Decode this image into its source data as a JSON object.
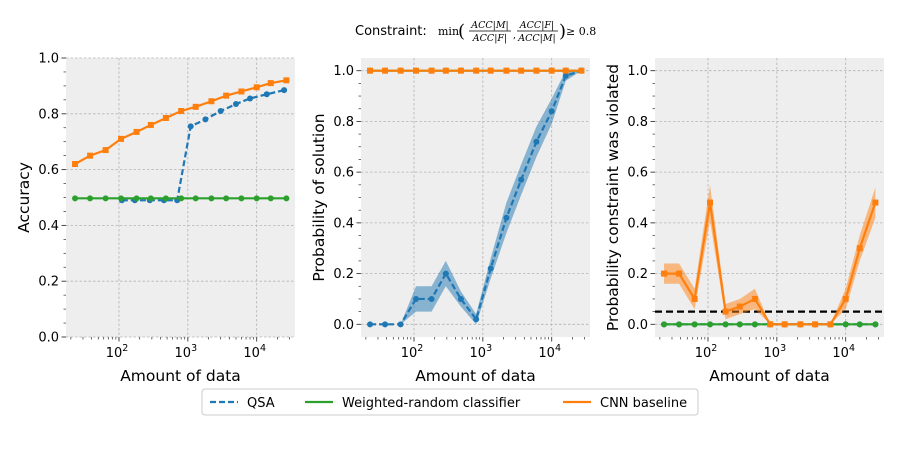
{
  "figure": {
    "title_prefix": "Constraint:",
    "title_min": "min",
    "title_frac1_num": "ACC|M|",
    "title_frac1_den": "ACC|F|",
    "title_frac2_num": "ACC|F|",
    "title_frac2_den": "ACC|M|",
    "title_comparison": "≥ 0.8",
    "background": "#ffffff",
    "axes_background": "#eeeeee",
    "grid_color": "#b3b3b3"
  },
  "legend": {
    "placement": "bottom-center",
    "entries": [
      {
        "label": "QSA",
        "color": "#1f77b4",
        "style": "dashed"
      },
      {
        "label": "Weighted-random classifier",
        "color": "#2ca02c",
        "style": "solid"
      },
      {
        "label": "CNN baseline",
        "color": "#ff7f0e",
        "style": "solid"
      }
    ]
  },
  "chart_data": [
    {
      "type": "line",
      "xlabel": "Amount of data",
      "ylabel": "Accuracy",
      "xscale": "log",
      "xlim": [
        17,
        36000
      ],
      "ylim": [
        0,
        1
      ],
      "yticks": [
        0.0,
        0.2,
        0.4,
        0.6,
        0.8,
        1.0
      ],
      "ytick_labels": [
        "0.0",
        "0.2",
        "0.4",
        "0.6",
        "0.8",
        "1.0"
      ],
      "xtick_labels": [
        {
          "base": "10",
          "exp": "2"
        },
        {
          "base": "10",
          "exp": "3"
        },
        {
          "base": "10",
          "exp": "4"
        }
      ],
      "xtick_values": [
        100,
        1000,
        10000
      ],
      "grid": true,
      "series": [
        {
          "name": "QSA",
          "color": "#1f77b4",
          "style": "dashed",
          "marker": "circle",
          "x": [
            110,
            170,
            280,
            450,
            700,
            1100,
            1800,
            3000,
            5000,
            8000,
            14000,
            25000
          ],
          "y": [
            0.49,
            0.49,
            0.49,
            0.49,
            0.49,
            0.755,
            0.78,
            0.81,
            0.835,
            0.855,
            0.87,
            0.885
          ]
        },
        {
          "name": "Weighted-random classifier",
          "color": "#2ca02c",
          "style": "solid",
          "marker": "circle",
          "x": [
            23,
            38,
            64,
            107,
            180,
            290,
            480,
            800,
            1300,
            2200,
            3600,
            6000,
            10000,
            16000,
            27000
          ],
          "y": [
            0.497,
            0.497,
            0.497,
            0.497,
            0.497,
            0.497,
            0.497,
            0.497,
            0.497,
            0.497,
            0.497,
            0.497,
            0.497,
            0.497,
            0.497
          ]
        },
        {
          "name": "CNN baseline",
          "color": "#ff7f0e",
          "style": "solid",
          "marker": "square",
          "x": [
            23,
            38,
            64,
            107,
            180,
            290,
            480,
            800,
            1300,
            2200,
            3600,
            6000,
            10000,
            16000,
            27000
          ],
          "y": [
            0.62,
            0.65,
            0.67,
            0.71,
            0.735,
            0.76,
            0.785,
            0.81,
            0.825,
            0.845,
            0.865,
            0.88,
            0.895,
            0.91,
            0.92
          ]
        }
      ]
    },
    {
      "type": "line",
      "xlabel": "Amount of data",
      "ylabel": "Probability of solution",
      "xscale": "log",
      "xlim": [
        17,
        36000
      ],
      "ylim": [
        -0.05,
        1.05
      ],
      "yticks": [
        0.0,
        0.2,
        0.4,
        0.6,
        0.8,
        1.0
      ],
      "ytick_labels": [
        "0.0",
        "0.2",
        "0.4",
        "0.6",
        "0.8",
        "1.0"
      ],
      "xtick_labels": [
        {
          "base": "10",
          "exp": "2"
        },
        {
          "base": "10",
          "exp": "3"
        },
        {
          "base": "10",
          "exp": "4"
        }
      ],
      "xtick_values": [
        100,
        1000,
        10000
      ],
      "grid": true,
      "series": [
        {
          "name": "QSA",
          "color": "#1f77b4",
          "style": "dashed",
          "marker": "circle",
          "x": [
            23,
            38,
            64,
            107,
            180,
            290,
            480,
            800,
            1300,
            2200,
            3600,
            6000,
            10000,
            16000,
            27000
          ],
          "y": [
            0.0,
            0.0,
            0.0,
            0.1,
            0.1,
            0.2,
            0.1,
            0.02,
            0.22,
            0.42,
            0.57,
            0.72,
            0.84,
            0.98,
            1.0
          ],
          "band": [
            0.0,
            0.0,
            0.0,
            0.05,
            0.05,
            0.05,
            0.03,
            0.02,
            0.04,
            0.06,
            0.06,
            0.06,
            0.05,
            0.02,
            0.0
          ]
        },
        {
          "name": "Weighted-random classifier",
          "color": "#2ca02c",
          "style": "solid",
          "marker": "circle",
          "x": [
            23,
            38,
            64,
            107,
            180,
            290,
            480,
            800,
            1300,
            2200,
            3600,
            6000,
            10000,
            16000,
            27000
          ],
          "y": [
            1.0,
            1.0,
            1.0,
            1.0,
            1.0,
            1.0,
            1.0,
            1.0,
            1.0,
            1.0,
            1.0,
            1.0,
            1.0,
            1.0,
            1.0
          ]
        },
        {
          "name": "CNN baseline",
          "color": "#ff7f0e",
          "style": "solid",
          "marker": "square",
          "x": [
            23,
            38,
            64,
            107,
            180,
            290,
            480,
            800,
            1300,
            2200,
            3600,
            6000,
            10000,
            16000,
            27000
          ],
          "y": [
            1.0,
            1.0,
            1.0,
            1.0,
            1.0,
            1.0,
            1.0,
            1.0,
            1.0,
            1.0,
            1.0,
            1.0,
            1.0,
            1.0,
            1.0
          ]
        }
      ]
    },
    {
      "type": "line",
      "xlabel": "Amount of data",
      "ylabel": "Probability constraint was violated",
      "xscale": "log",
      "xlim": [
        17,
        36000
      ],
      "ylim": [
        -0.05,
        1.05
      ],
      "yticks": [
        0.0,
        0.2,
        0.4,
        0.6,
        0.8,
        1.0
      ],
      "ytick_labels": [
        "0.0",
        "0.2",
        "0.4",
        "0.6",
        "0.8",
        "1.0"
      ],
      "xtick_labels": [
        {
          "base": "10",
          "exp": "2"
        },
        {
          "base": "10",
          "exp": "3"
        },
        {
          "base": "10",
          "exp": "4"
        }
      ],
      "xtick_values": [
        100,
        1000,
        10000
      ],
      "grid": true,
      "hline": {
        "y": 0.05,
        "color": "#000000",
        "style": "dashed"
      },
      "series": [
        {
          "name": "QSA",
          "color": "#1f77b4",
          "style": "dashed",
          "marker": "circle",
          "x": [
            23,
            38,
            64,
            107,
            180,
            290,
            480,
            800,
            1300,
            2200,
            3600,
            6000,
            10000,
            16000,
            27000
          ],
          "y": [
            0.0,
            0.0,
            0.0,
            0.0,
            0.0,
            0.0,
            0.0,
            0.0,
            0.0,
            0.0,
            0.0,
            0.0,
            0.0,
            0.0,
            0.0
          ]
        },
        {
          "name": "Weighted-random classifier",
          "color": "#2ca02c",
          "style": "solid",
          "marker": "circle",
          "x": [
            23,
            38,
            64,
            107,
            180,
            290,
            480,
            800,
            1300,
            2200,
            3600,
            6000,
            10000,
            16000,
            27000
          ],
          "y": [
            0.0,
            0.0,
            0.0,
            0.0,
            0.0,
            0.0,
            0.0,
            0.0,
            0.0,
            0.0,
            0.0,
            0.0,
            0.0,
            0.0,
            0.0
          ]
        },
        {
          "name": "CNN baseline",
          "color": "#ff7f0e",
          "style": "solid",
          "marker": "square",
          "x": [
            23,
            38,
            64,
            107,
            180,
            290,
            480,
            800,
            1300,
            2200,
            3600,
            6000,
            10000,
            16000,
            27000
          ],
          "y": [
            0.2,
            0.2,
            0.1,
            0.48,
            0.05,
            0.07,
            0.1,
            0.0,
            0.0,
            0.0,
            0.0,
            0.0,
            0.1,
            0.3,
            0.48
          ],
          "band": [
            0.04,
            0.04,
            0.04,
            0.07,
            0.03,
            0.03,
            0.04,
            0.0,
            0.0,
            0.0,
            0.0,
            0.0,
            0.04,
            0.05,
            0.06
          ]
        }
      ]
    }
  ]
}
